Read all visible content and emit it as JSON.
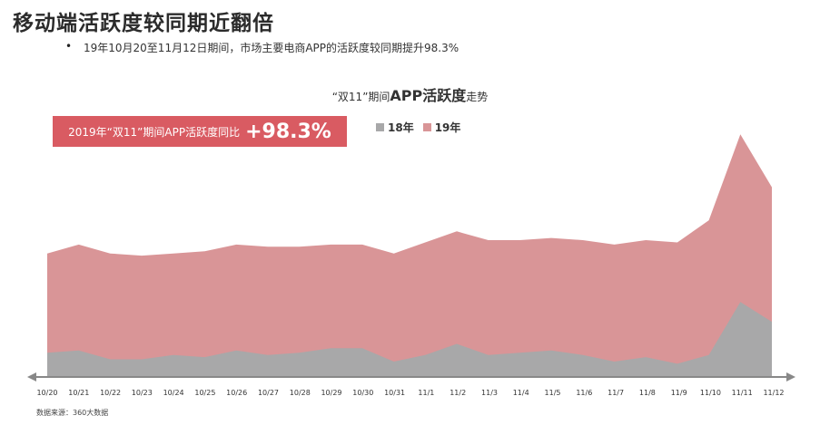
{
  "header": {
    "title": "移动端活跃度较同期近翻倍",
    "bullet_marker": "•",
    "bullet": "19年10月20至11月12日期间，市场主要电商APP的活跃度较同期提升98.3%"
  },
  "chart_title": {
    "prefix": "“双11”期间",
    "main": "APP活跃度",
    "suffix": "走势"
  },
  "badge": {
    "label": "2019年“双11”期间APP活跃度同比",
    "value": "+98.3%"
  },
  "source": "数据来源：360大数据",
  "colors": {
    "series_18": "#a8a8a9",
    "series_19": "#d99597",
    "badge": "#d95b62",
    "axis": "#888888"
  },
  "chart_data": {
    "type": "area",
    "categories": [
      "10/20",
      "10/21",
      "10/22",
      "10/23",
      "10/24",
      "10/25",
      "10/26",
      "10/27",
      "10/28",
      "10/29",
      "10/30",
      "10/31",
      "11/1",
      "11/2",
      "11/3",
      "11/4",
      "11/5",
      "11/6",
      "11/7",
      "11/8",
      "11/9",
      "11/10",
      "11/11",
      "11/12"
    ],
    "series": [
      {
        "name": "18年",
        "color": "#a8a8a9",
        "values": [
          11,
          12,
          8,
          8,
          10,
          9,
          12,
          10,
          11,
          13,
          13,
          7,
          10,
          15,
          10,
          11,
          12,
          10,
          7,
          9,
          6,
          10,
          34,
          25
        ]
      },
      {
        "name": "19年",
        "color": "#d99597",
        "values": [
          56,
          60,
          56,
          55,
          56,
          57,
          60,
          59,
          59,
          60,
          60,
          56,
          61,
          66,
          62,
          62,
          63,
          62,
          60,
          62,
          61,
          71,
          110,
          86
        ]
      }
    ],
    "ylim": [
      0,
      115
    ],
    "legend_position": "top",
    "grid": false
  }
}
